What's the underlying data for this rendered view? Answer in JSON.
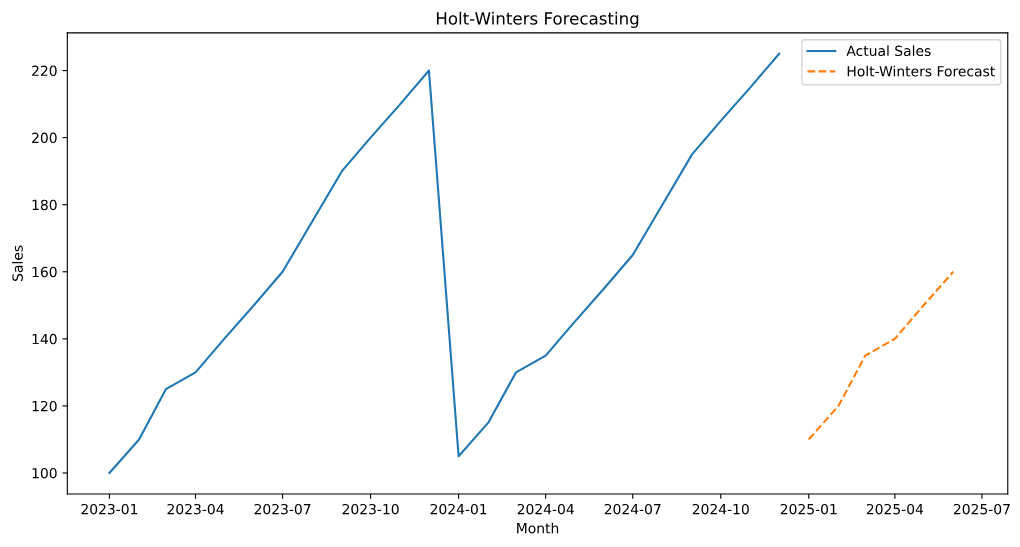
{
  "chart_data": {
    "type": "line",
    "title": "Holt-Winters Forecasting",
    "xlabel": "Month",
    "ylabel": "Sales",
    "series": [
      {
        "name": "Actual Sales",
        "color": "#1f77b4",
        "line_style": "solid",
        "x": [
          "2023-01",
          "2023-02",
          "2023-03",
          "2023-04",
          "2023-05",
          "2023-06",
          "2023-07",
          "2023-08",
          "2023-09",
          "2023-10",
          "2023-11",
          "2023-12",
          "2024-01",
          "2024-02",
          "2024-03",
          "2024-04",
          "2024-05",
          "2024-06",
          "2024-07",
          "2024-08",
          "2024-09",
          "2024-10",
          "2024-11",
          "2024-12"
        ],
        "values": [
          100,
          110,
          125,
          130,
          140,
          150,
          160,
          175,
          190,
          200,
          210,
          220,
          105,
          115,
          130,
          135,
          145,
          155,
          165,
          180,
          195,
          205,
          215,
          225
        ]
      },
      {
        "name": "Holt-Winters Forecast",
        "color": "#ff7f0e",
        "line_style": "dashed",
        "x": [
          "2025-01",
          "2025-02",
          "2025-03",
          "2025-04",
          "2025-05",
          "2025-06"
        ],
        "values": [
          110,
          120,
          135,
          140,
          150,
          160
        ]
      }
    ],
    "xlim": [
      "2022-11-18",
      "2025-07-28"
    ],
    "xticks": [
      {
        "value": "2023-01",
        "label": "2023-01"
      },
      {
        "value": "2023-04",
        "label": "2023-04"
      },
      {
        "value": "2023-07",
        "label": "2023-07"
      },
      {
        "value": "2023-10",
        "label": "2023-10"
      },
      {
        "value": "2024-01",
        "label": "2024-01"
      },
      {
        "value": "2024-04",
        "label": "2024-04"
      },
      {
        "value": "2024-07",
        "label": "2024-07"
      },
      {
        "value": "2024-10",
        "label": "2024-10"
      },
      {
        "value": "2025-01",
        "label": "2025-01"
      },
      {
        "value": "2025-04",
        "label": "2025-04"
      },
      {
        "value": "2025-07",
        "label": "2025-07"
      }
    ],
    "ylim": [
      93.75,
      231.25
    ],
    "yticks": [
      100,
      120,
      140,
      160,
      180,
      200,
      220
    ],
    "grid": false,
    "legend": "top right",
    "marker": "none"
  }
}
